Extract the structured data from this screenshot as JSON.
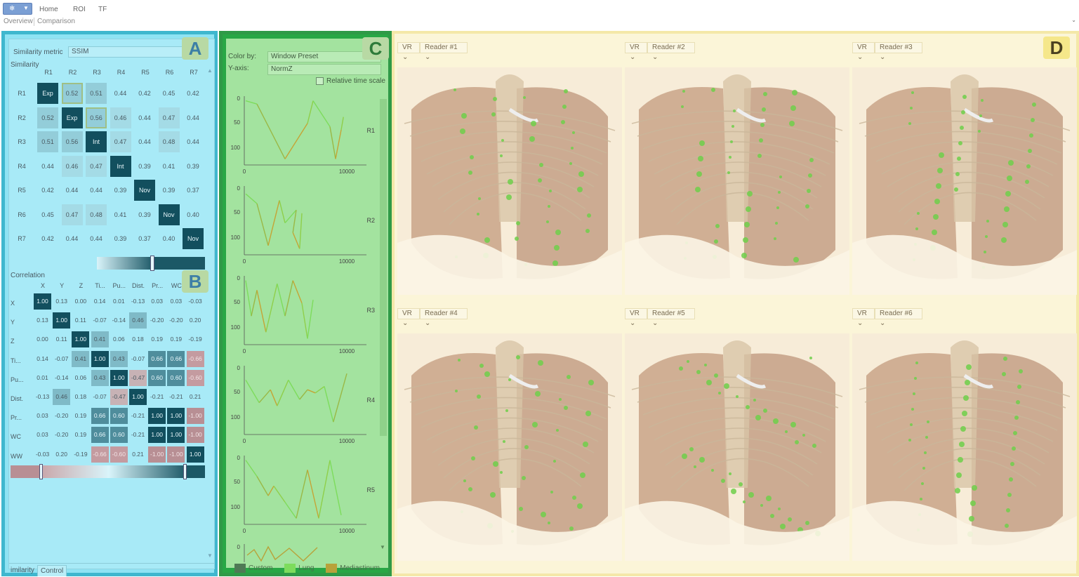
{
  "ribbon": {
    "app_button_glyph": "❄",
    "menu": [
      "Home",
      "ROI",
      "TF"
    ],
    "subtabs": [
      "Overview",
      "Comparison"
    ],
    "collapse_glyph": "⌄"
  },
  "panelA": {
    "badge": "A",
    "similarity_metric_label": "Similarity metric",
    "similarity_metric_value": "SSIM",
    "similarity_label": "Similarity",
    "similarity_headers": [
      "R1",
      "R2",
      "R3",
      "R4",
      "R5",
      "R6",
      "R7"
    ],
    "similarity_rows": [
      [
        "Exp",
        "0.52",
        "0.51",
        "0.44",
        "0.42",
        "0.45",
        "0.42"
      ],
      [
        "0.52",
        "Exp",
        "0.56",
        "0.46",
        "0.44",
        "0.47",
        "0.44"
      ],
      [
        "0.51",
        "0.56",
        "Int",
        "0.47",
        "0.44",
        "0.48",
        "0.44"
      ],
      [
        "0.44",
        "0.46",
        "0.47",
        "Int",
        "0.39",
        "0.41",
        "0.39"
      ],
      [
        "0.42",
        "0.44",
        "0.44",
        "0.39",
        "Nov",
        "0.39",
        "0.37"
      ],
      [
        "0.45",
        "0.47",
        "0.48",
        "0.41",
        "0.39",
        "Nov",
        "0.40"
      ],
      [
        "0.42",
        "0.44",
        "0.44",
        "0.39",
        "0.37",
        "0.40",
        "Nov"
      ]
    ],
    "similarity_slider_position": 0.5,
    "badgeB": "B",
    "correlation_label": "Correlation",
    "correlation_headers": [
      "X",
      "Y",
      "Z",
      "Ti...",
      "Pu...",
      "Dist.",
      "Pr...",
      "WC",
      "WW"
    ],
    "correlation_rows": [
      [
        "1.00",
        "0.13",
        "0.00",
        "0.14",
        "0.01",
        "-0.13",
        "0.03",
        "0.03",
        "-0.03"
      ],
      [
        "0.13",
        "1.00",
        "0.11",
        "-0.07",
        "-0.14",
        "0.46",
        "-0.20",
        "-0.20",
        "0.20"
      ],
      [
        "0.00",
        "0.11",
        "1.00",
        "0.41",
        "0.06",
        "0.18",
        "0.19",
        "0.19",
        "-0.19"
      ],
      [
        "0.14",
        "-0.07",
        "0.41",
        "1.00",
        "0.43",
        "-0.07",
        "0.66",
        "0.66",
        "-0.66"
      ],
      [
        "0.01",
        "-0.14",
        "0.06",
        "0.43",
        "1.00",
        "-0.47",
        "0.60",
        "0.60",
        "-0.60"
      ],
      [
        "-0.13",
        "0.46",
        "0.18",
        "-0.07",
        "-0.47",
        "1.00",
        "-0.21",
        "-0.21",
        "0.21"
      ],
      [
        "0.03",
        "-0.20",
        "0.19",
        "0.66",
        "0.60",
        "-0.21",
        "1.00",
        "1.00",
        "-1.00"
      ],
      [
        "0.03",
        "-0.20",
        "0.19",
        "0.66",
        "0.60",
        "-0.21",
        "1.00",
        "1.00",
        "-1.00"
      ],
      [
        "-0.03",
        "0.20",
        "-0.19",
        "-0.66",
        "-0.60",
        "0.21",
        "-1.00",
        "-1.00",
        "1.00"
      ]
    ],
    "bottom_tabs": [
      "imilarity",
      "Control"
    ]
  },
  "panelC": {
    "badge": "C",
    "color_by_label": "Color by:",
    "color_by_value": "Window Preset",
    "yaxis_label": "Y-axis:",
    "yaxis_value": "NormZ",
    "relative_time_label": "Relative time scale",
    "relative_time_checked": false,
    "chart_data": [
      {
        "type": "line",
        "name": "R1",
        "title": "R1",
        "yticks": [
          "0",
          "50",
          "100"
        ],
        "xticks": [
          "0",
          "10000"
        ]
      },
      {
        "type": "line",
        "name": "R2",
        "title": "R2",
        "yticks": [
          "0",
          "50",
          "100"
        ],
        "xticks": [
          "0",
          "10000"
        ]
      },
      {
        "type": "line",
        "name": "R3",
        "title": "R3",
        "yticks": [
          "0",
          "50",
          "100"
        ],
        "xticks": [
          "0",
          "10000"
        ]
      },
      {
        "type": "line",
        "name": "R4",
        "title": "R4",
        "yticks": [
          "0",
          "50",
          "100"
        ],
        "xticks": [
          "0",
          "10000"
        ]
      },
      {
        "type": "line",
        "name": "R5",
        "title": "R5",
        "yticks": [
          "0",
          "50",
          "100"
        ],
        "xticks": [
          "0",
          "10000"
        ]
      }
    ],
    "last_chart_ytick": "0",
    "legend": [
      {
        "label": "Custom",
        "color": "#4f7a55"
      },
      {
        "label": "Lung",
        "color": "#7ddc5c"
      },
      {
        "label": "Mediastinum",
        "color": "#b8a23a"
      }
    ]
  },
  "panelD": {
    "badge": "D",
    "viewports": [
      {
        "mode": "VR",
        "reader": "Reader #1"
      },
      {
        "mode": "VR",
        "reader": "Reader #2"
      },
      {
        "mode": "VR",
        "reader": "Reader #3"
      },
      {
        "mode": "VR",
        "reader": "Reader #4"
      },
      {
        "mode": "VR",
        "reader": "Reader #5"
      },
      {
        "mode": "VR",
        "reader": "Reader #6"
      }
    ]
  },
  "colors": {
    "panelA_border": "#3fb7ce",
    "panelC_border": "#2f9a47",
    "panelD_border": "#f4e8a8",
    "matrix_dark": "#124f5e",
    "negative_tint": "#c49ba0"
  }
}
